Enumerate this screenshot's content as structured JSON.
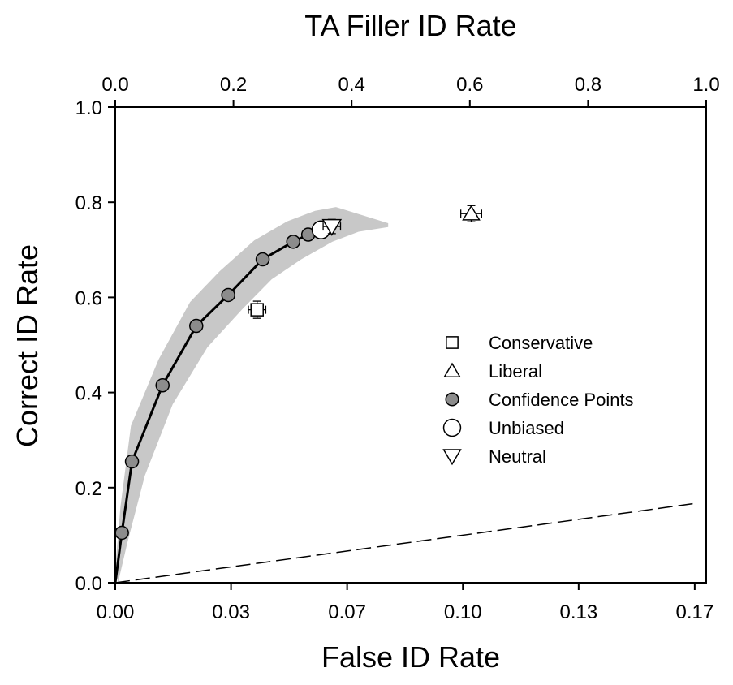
{
  "chart_data": {
    "type": "scatter",
    "title": "",
    "xlabel": "False ID Rate",
    "ylabel": "Correct ID Rate",
    "x2label": "TA Filler ID Rate",
    "xlim": [
      0,
      0.17
    ],
    "ylim": [
      0,
      1.0
    ],
    "x2lim": [
      0,
      1.0
    ],
    "x_ticks": [
      0,
      0.0333,
      0.0667,
      0.1,
      0.1333,
      0.1667
    ],
    "x_tick_labels": [
      "0.00",
      "0.03",
      "0.07",
      "0.10",
      "0.13",
      "0.17"
    ],
    "y_ticks": [
      0,
      0.2,
      0.4,
      0.6,
      0.8,
      1.0
    ],
    "y_tick_labels": [
      "0.0",
      "0.2",
      "0.4",
      "0.6",
      "0.8",
      "1.0"
    ],
    "x2_ticks": [
      0,
      0.2,
      0.4,
      0.6,
      0.8,
      1.0
    ],
    "x2_tick_labels": [
      "0.0",
      "0.2",
      "0.4",
      "0.6",
      "0.8",
      "1.0"
    ],
    "grid": false,
    "legend_position": "center-right",
    "band_color": "#c8c8c8",
    "point_fill": "#8c8c8c",
    "confidence_curve": {
      "x": [
        0,
        0.0019,
        0.0048,
        0.0136,
        0.0233,
        0.0325,
        0.0424,
        0.0512,
        0.0555,
        0.0592
      ],
      "y": [
        0,
        0.105,
        0.255,
        0.415,
        0.54,
        0.605,
        0.68,
        0.717,
        0.732,
        0.742
      ]
    },
    "confidence_band": {
      "upper": [
        [
          0,
          0.03
        ],
        [
          0.0015,
          0.16
        ],
        [
          0.0045,
          0.33
        ],
        [
          0.0125,
          0.47
        ],
        [
          0.0215,
          0.59
        ],
        [
          0.03,
          0.655
        ],
        [
          0.04,
          0.72
        ],
        [
          0.0495,
          0.76
        ],
        [
          0.0575,
          0.782
        ],
        [
          0.0635,
          0.79
        ]
      ],
      "lower": [
        [
          0.0785,
          0.756
        ],
        [
          0.0785,
          0.748
        ],
        [
          0.07,
          0.738
        ],
        [
          0.0625,
          0.717
        ],
        [
          0.0535,
          0.68
        ],
        [
          0.045,
          0.638
        ],
        [
          0.0365,
          0.575
        ],
        [
          0.0265,
          0.495
        ],
        [
          0.0165,
          0.375
        ],
        [
          0.0085,
          0.225
        ],
        [
          0.0035,
          0.085
        ],
        [
          0.0008,
          0
        ]
      ]
    },
    "diagonal": {
      "x": [
        0,
        0.1667
      ],
      "y": [
        0,
        0.1667
      ]
    },
    "series": [
      {
        "name": "Conservative",
        "marker": "square",
        "x": 0.0408,
        "y": 0.574,
        "xerr": 0.0025,
        "yerr": 0.018
      },
      {
        "name": "Liberal",
        "marker": "triangle",
        "x": 0.1024,
        "y": 0.776,
        "xerr": 0.003,
        "yerr": 0.017
      },
      {
        "name": "Confidence Points",
        "marker": "filled-circle"
      },
      {
        "name": "Unbiased",
        "marker": "circle",
        "x": 0.0592,
        "y": 0.742,
        "xerr": 0.0016,
        "yerr": 0.012
      },
      {
        "name": "Neutral",
        "marker": "inverted-triangle",
        "x": 0.0623,
        "y": 0.749,
        "xerr": 0.0025,
        "yerr": 0.015
      }
    ]
  }
}
